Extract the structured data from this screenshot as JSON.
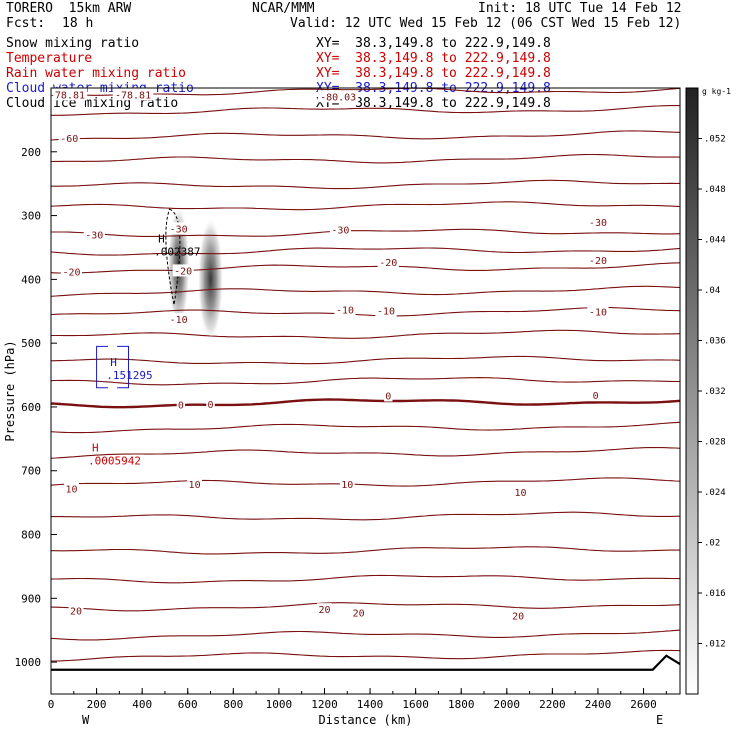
{
  "header": {
    "model": "TORERO  15km ARW",
    "org": "NCAR/MMM",
    "init": "Init: 18 UTC Tue 14 Feb 12",
    "fcst_label": "Fcst:",
    "fcst_value": "18 h",
    "valid": "Valid: 12 UTC Wed 15 Feb 12 (06 CST Wed 15 Feb 12)"
  },
  "fields": [
    {
      "name": "Snow mixing ratio",
      "xy": "XY=  38.3,149.8 to 222.9,149.8",
      "color": "#000000"
    },
    {
      "name": "Temperature",
      "xy": "XY=  38.3,149.8 to 222.9,149.8",
      "color": "#cc0000"
    },
    {
      "name": "Rain water mixing ratio",
      "xy": "XY=  38.3,149.8 to 222.9,149.8",
      "color": "#cc0000"
    },
    {
      "name": "Cloud water mixing ratio",
      "xy": "XY=  38.3,149.8 to 222.9,149.8",
      "color": "#1a1acc"
    },
    {
      "name": "Cloud ice mixing ratio",
      "xy": "XY=  38.3,149.8 to 222.9,149.8",
      "color": "#000000"
    }
  ],
  "chart_data": {
    "type": "cross-section",
    "xlabel": "Distance (km)",
    "ylabel": "Pressure (hPa)",
    "xlim": [
      0,
      2760
    ],
    "ylim": [
      1050,
      100
    ],
    "x_ticks": [
      0,
      200,
      400,
      600,
      800,
      1000,
      1200,
      1400,
      1600,
      1800,
      2000,
      2200,
      2400,
      2600
    ],
    "y_ticks": [
      200,
      300,
      400,
      500,
      600,
      700,
      800,
      900,
      1000
    ],
    "west_label": "W",
    "east_label": "E",
    "colorbar": {
      "units": "g kg-1",
      "tick_values": [
        0.012,
        0.016,
        0.02,
        0.024,
        0.028,
        0.032,
        0.036,
        0.04,
        0.044,
        0.048,
        0.052
      ],
      "tick_labels": [
        ".012",
        ".016",
        ".02",
        ".024",
        ".028",
        ".032",
        ".036",
        ".04",
        ".044",
        ".048",
        ".052"
      ]
    },
    "temperature_labels": [
      {
        "text": "-78.81",
        "x": 70,
        "p": 110
      },
      {
        "text": "-78.81",
        "x": 360,
        "p": 110
      },
      {
        "text": "-80.03",
        "x": 1260,
        "p": 113
      },
      {
        "text": "-60",
        "x": 80,
        "p": 178
      },
      {
        "text": "-30",
        "x": 190,
        "p": 330
      },
      {
        "text": "-30",
        "x": 560,
        "p": 320
      },
      {
        "text": "-30",
        "x": 1270,
        "p": 322
      },
      {
        "text": "-30",
        "x": 2400,
        "p": 310
      },
      {
        "text": "-20",
        "x": 90,
        "p": 388
      },
      {
        "text": "-20",
        "x": 580,
        "p": 386
      },
      {
        "text": "-20",
        "x": 1480,
        "p": 373
      },
      {
        "text": "-20",
        "x": 2400,
        "p": 370
      },
      {
        "text": "-10",
        "x": 560,
        "p": 462
      },
      {
        "text": "-10",
        "x": 1290,
        "p": 447
      },
      {
        "text": "-10",
        "x": 1470,
        "p": 449
      },
      {
        "text": "-10",
        "x": 2400,
        "p": 450
      },
      {
        "text": "0",
        "x": 570,
        "p": 596
      },
      {
        "text": "0",
        "x": 700,
        "p": 595
      },
      {
        "text": "0",
        "x": 1480,
        "p": 582
      },
      {
        "text": "0",
        "x": 2390,
        "p": 581
      },
      {
        "text": "10",
        "x": 90,
        "p": 728
      },
      {
        "text": "10",
        "x": 630,
        "p": 721
      },
      {
        "text": "10",
        "x": 1300,
        "p": 721
      },
      {
        "text": "10",
        "x": 2060,
        "p": 733
      },
      {
        "text": "20",
        "x": 110,
        "p": 919
      },
      {
        "text": "20",
        "x": 1200,
        "p": 917
      },
      {
        "text": "20",
        "x": 1350,
        "p": 922
      },
      {
        "text": "20",
        "x": 2050,
        "p": 927
      }
    ],
    "temperature_isotherms_p": [
      108,
      138,
      178,
      215,
      255,
      288,
      330,
      358,
      385,
      422,
      455,
      490,
      530,
      562,
      596,
      635,
      675,
      722,
      775,
      828,
      872,
      915,
      960,
      993
    ],
    "annotations": [
      {
        "text": "H",
        "value": ".002387",
        "x": 470,
        "p": 355,
        "color": "#000000",
        "field": "Cloud ice mixing ratio"
      },
      {
        "text": "H",
        "value": ".151295",
        "x": 260,
        "p": 548,
        "color": "#1a1acc",
        "field": "Cloud water mixing ratio"
      },
      {
        "text": "H",
        "value": ".0005942",
        "x": 180,
        "p": 682,
        "color": "#cc0000",
        "field": "Rain water mixing ratio"
      }
    ],
    "snow_maxima": [
      {
        "x": 560,
        "p": 380,
        "value": 0.05
      },
      {
        "x": 700,
        "p": 400,
        "value": 0.052
      }
    ]
  }
}
